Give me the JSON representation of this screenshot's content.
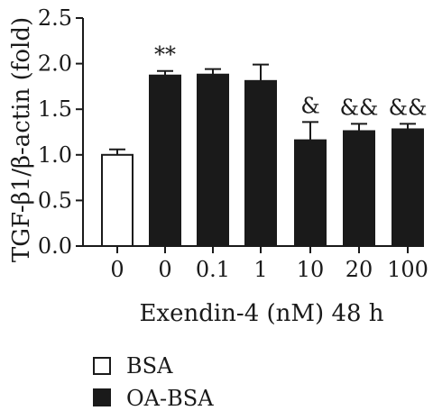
{
  "chart_data": {
    "type": "bar",
    "ylabel": "TGF-β1/β-actin (fold)",
    "xlabel": "Exendin-4 (nM) 48 h",
    "ylim": [
      0,
      2.5
    ],
    "yticks": [
      "0.0",
      "0.5",
      "1.0",
      "1.5",
      "2.0",
      "2.5"
    ],
    "categories": [
      "0",
      "0",
      "0.1",
      "1",
      "10",
      "20",
      "100"
    ],
    "values": [
      1.0,
      1.87,
      1.88,
      1.81,
      1.16,
      1.26,
      1.28
    ],
    "errors": [
      0.06,
      0.05,
      0.06,
      0.18,
      0.2,
      0.08,
      0.06
    ],
    "groups": [
      "BSA",
      "OA-BSA",
      "OA-BSA",
      "OA-BSA",
      "OA-BSA",
      "OA-BSA",
      "OA-BSA"
    ],
    "annotations": [
      "",
      "**",
      "",
      "",
      "&",
      "&&",
      "&&"
    ],
    "legend": [
      {
        "label": "BSA",
        "fill": "#ffffff"
      },
      {
        "label": "OA-BSA",
        "fill": "#1a1a1a"
      }
    ],
    "legend_position": "bottom-left",
    "grid": false
  }
}
